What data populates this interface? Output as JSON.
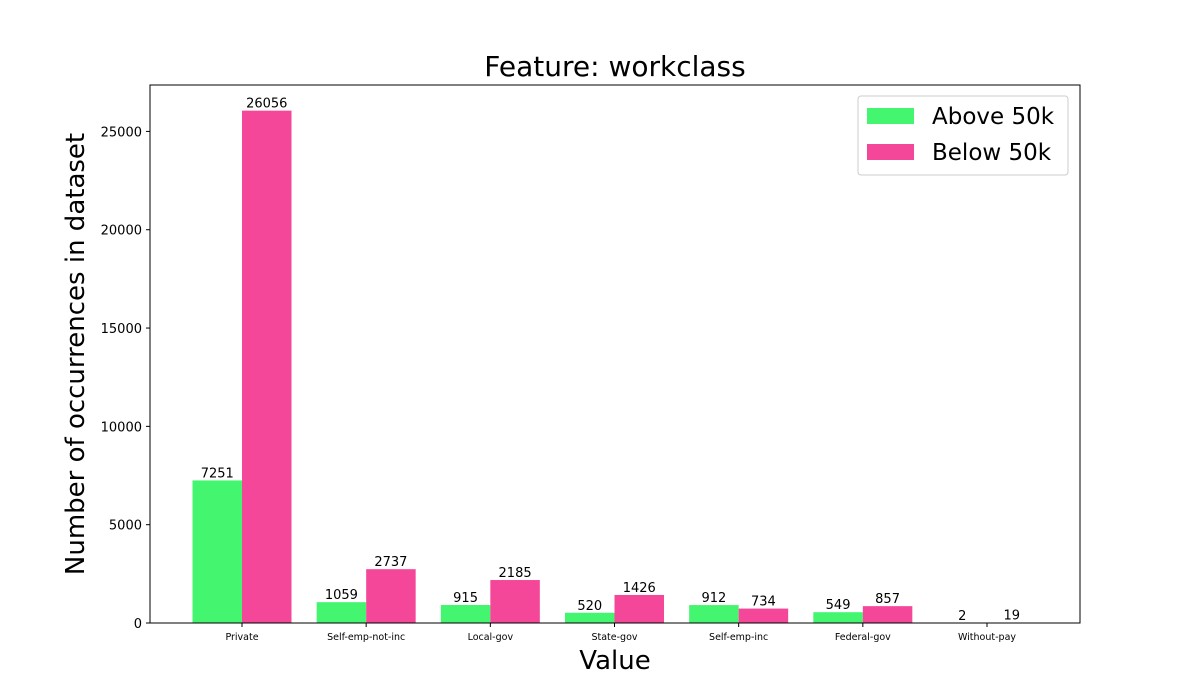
{
  "chart_data": {
    "type": "bar",
    "title": "Feature: workclass",
    "xlabel": "Value",
    "ylabel": "Number of occurrences in dataset",
    "categories": [
      "Private",
      "Self-emp-not-inc",
      "Local-gov",
      "State-gov",
      "Self-emp-inc",
      "Federal-gov",
      "Without-pay"
    ],
    "series": [
      {
        "name": "Above 50k",
        "color": "#43f56f",
        "values": [
          7251,
          1059,
          915,
          520,
          912,
          549,
          2
        ]
      },
      {
        "name": "Below 50k",
        "color": "#f54799",
        "values": [
          26056,
          2737,
          2185,
          1426,
          734,
          857,
          19
        ]
      }
    ],
    "ylim": [
      0,
      27360
    ],
    "yticks": [
      0,
      5000,
      10000,
      15000,
      20000,
      25000
    ],
    "grid": false,
    "legend_position": "top-right"
  }
}
